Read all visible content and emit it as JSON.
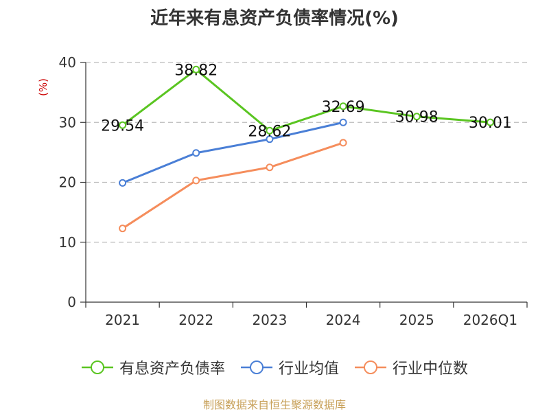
{
  "chart_data": {
    "type": "line",
    "title": "近年来有息资产负债率情况(%)",
    "ylabel": "(%)",
    "xlabel": "",
    "categories": [
      "2021",
      "2022",
      "2023",
      "2024",
      "2025",
      "2026Q1"
    ],
    "ylim": [
      0,
      40
    ],
    "yticks": [
      0,
      10,
      20,
      30,
      40
    ],
    "grid": true,
    "legend_position": "bottom",
    "series": [
      {
        "name": "有息资产负债率",
        "color": "#5ac521",
        "values": [
          29.54,
          38.82,
          28.62,
          32.69,
          30.98,
          30.01
        ],
        "labels": [
          "29.54",
          "38.82",
          "28.62",
          "32.69",
          "30.98",
          "30.01"
        ]
      },
      {
        "name": "行业均值",
        "color": "#4a7fd6",
        "values": [
          19.9,
          24.9,
          27.2,
          30.0,
          null,
          null
        ]
      },
      {
        "name": "行业中位数",
        "color": "#f58d5c",
        "values": [
          12.3,
          20.3,
          22.5,
          26.6,
          null,
          null
        ]
      }
    ]
  },
  "footer": {
    "source": "制图数据来自恒生聚源数据库"
  }
}
